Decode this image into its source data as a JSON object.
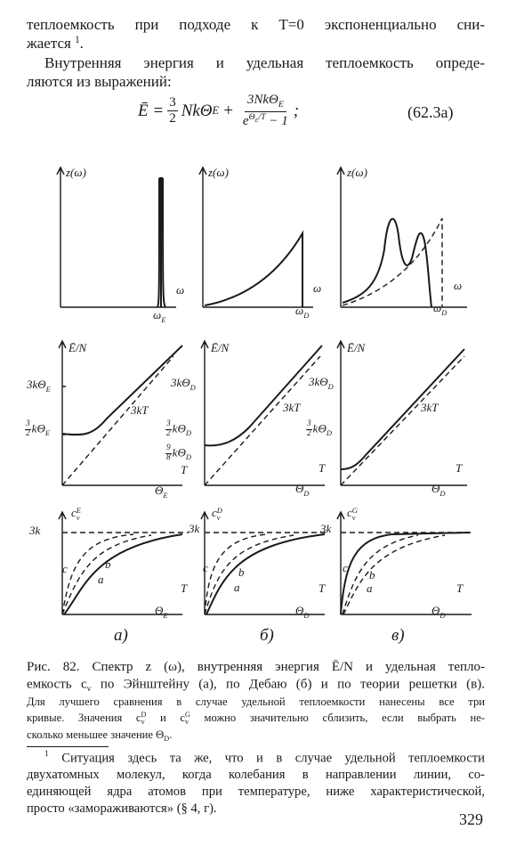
{
  "body": {
    "lines": [
      "теплоемкость при подходе к T=0 экспоненциально сни-",
      [
        "жается ",
        {
          "sup": "1"
        },
        "."
      ],
      "Внутренняя энергия и удельная теплоемкость опреде-",
      "ляются из выражений:"
    ]
  },
  "equation": {
    "lhs": "Ē =",
    "f1_num": "3",
    "f1_den": "2",
    "t1": "NkΘ",
    "t1_sub": "E",
    "plus": "+",
    "f2_num": "3NkΘ",
    "f2_num_sub": "E",
    "e": "e",
    "exp": "Θ",
    "exp_sub": "E",
    "exp_tail": "/T",
    "minus_one": "− 1",
    "semicolon": ";",
    "number": "(62.3а)"
  },
  "figure": {
    "columns": [
      {
        "top": [
          "z(ω)",
          "ω",
          {
            "text": "ω",
            "sub": "E"
          }
        ],
        "middle": [
          "Ē/N",
          {
            "text": "3kΘ",
            "sub": "E"
          },
          {
            "num": "3",
            "den": "2",
            "text": "kΘ",
            "sub": "E"
          },
          "3kT",
          "T",
          {
            "text": "Θ",
            "sub": "E"
          }
        ],
        "bottom": [
          {
            "text": "c",
            "sup": "E",
            "sub": "v"
          },
          "3k",
          "c",
          "b",
          "a",
          "T",
          {
            "text": "Θ",
            "sub": "E"
          }
        ],
        "label": "а)"
      },
      {
        "top": [
          "z(ω)",
          "ω",
          {
            "text": "ω",
            "sub": "D"
          }
        ],
        "middle": [
          "Ē/N",
          {
            "text": "3kΘ",
            "sub": "D"
          },
          "3kT",
          {
            "num": "3",
            "den": "2",
            "text": "kΘ",
            "sub": "D"
          },
          {
            "num": "9",
            "den": "8",
            "text": "kΘ",
            "sub": "D"
          },
          "T",
          {
            "text": "Θ",
            "sub": "D"
          }
        ],
        "bottom": [
          {
            "text": "c",
            "sup": "D",
            "sub": "v"
          },
          "3k",
          "c",
          "b",
          "a",
          "T",
          {
            "text": "Θ",
            "sub": "D"
          }
        ],
        "label": "б)"
      },
      {
        "top": [
          "z(ω)",
          "ω",
          {
            "text": "ω",
            "sub": "D"
          }
        ],
        "middle": [
          "Ē/N",
          {
            "text": "3kΘ",
            "sub": "D"
          },
          {
            "num": "3",
            "den": "2",
            "text": "kΘ",
            "sub": "D"
          },
          "3kT",
          "T",
          {
            "text": "Θ",
            "sub": "D"
          }
        ],
        "bottom": [
          {
            "text": "c",
            "sup": "G",
            "sub": "v"
          },
          "3k",
          "c",
          "b",
          "a",
          "T",
          {
            "text": "Θ",
            "sub": "D"
          }
        ],
        "label": "в)"
      }
    ]
  },
  "caption": {
    "lines": [
      "Рис. 82. Спектр z (ω), внутренняя энергия Ē/N и удельная тепло-",
      [
        "емкость ",
        {
          "text": "c",
          "sub": "v"
        },
        " по Эйнштейну (а), по Дебаю (б) и по теории решетки (в)."
      ],
      "Для лучшего сравнения в случае удельной теплоемкости нанесены все три",
      [
        "кривые. Значения ",
        {
          "text": "c",
          "sup": "D",
          "sub": "v"
        },
        " и ",
        {
          "text": "c",
          "sup": "G",
          "sub": "v"
        },
        " можно значительно сблизить, если выбрать не-"
      ],
      [
        "сколько меньшее значение ",
        {
          "text": "Θ",
          "sub": "D"
        },
        "."
      ]
    ]
  },
  "footnote": {
    "lines": [
      [
        {
          "sup": "1"
        },
        " Ситуация здесь та же, что и в случае удельной теплоемкости"
      ],
      "двухатомных молекул, когда колебания в направлении линии, со-",
      "единяющей ядра атомов при температуре, ниже характеристической,",
      "просто «замораживаются» (§ 4, г)."
    ]
  },
  "page_number": "329"
}
